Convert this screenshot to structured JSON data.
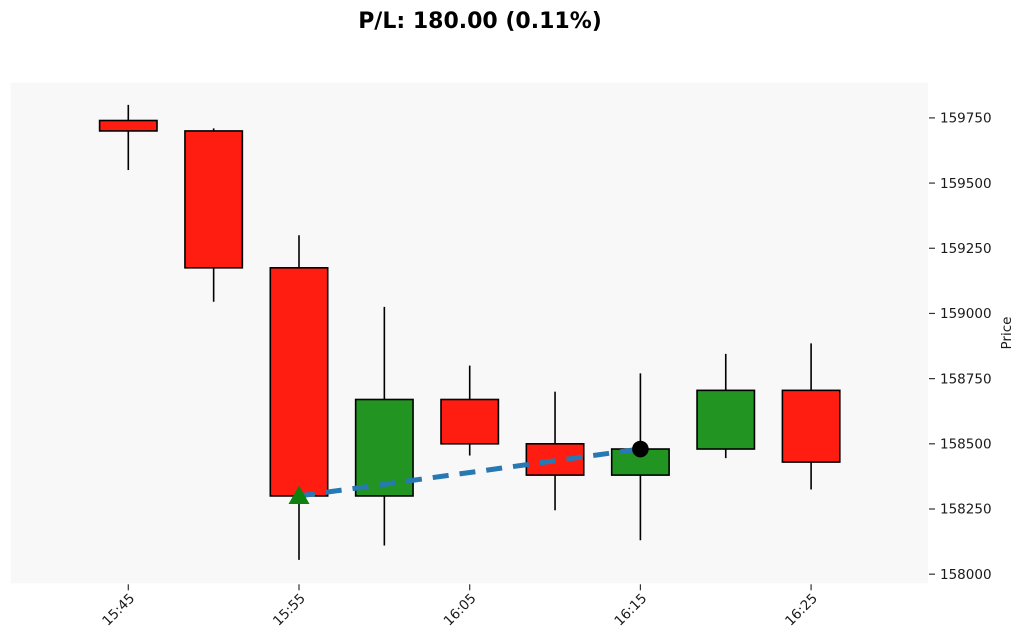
{
  "title": "P/L: 180.00 (0.11%)",
  "chart_data": {
    "type": "candlestick",
    "title": "P/L: 180.00 (0.11%)",
    "ylabel": "Price",
    "xlabel": "",
    "grid": false,
    "y_ticks": [
      158000,
      158250,
      158500,
      158750,
      159000,
      159250,
      159500,
      159750
    ],
    "ylim": [
      157965,
      159885
    ],
    "x_tick_labels": [
      "15:45",
      "15:55",
      "16:05",
      "16:15",
      "16:25"
    ],
    "x_tick_candle_indices": [
      0,
      2,
      4,
      6,
      8
    ],
    "categories": [
      "15:45",
      "15:50",
      "15:55",
      "16:00",
      "16:05",
      "16:10",
      "16:15",
      "16:20",
      "16:25"
    ],
    "candles": [
      {
        "time": "15:45",
        "open": 159740,
        "high": 159800,
        "low": 159550,
        "close": 159700
      },
      {
        "time": "15:50",
        "open": 159700,
        "high": 159710,
        "low": 159045,
        "close": 159175
      },
      {
        "time": "15:55",
        "open": 159175,
        "high": 159300,
        "low": 158055,
        "close": 158300
      },
      {
        "time": "16:00",
        "open": 158300,
        "high": 159025,
        "low": 158110,
        "close": 158670
      },
      {
        "time": "16:05",
        "open": 158670,
        "high": 158800,
        "low": 158455,
        "close": 158500
      },
      {
        "time": "16:10",
        "open": 158500,
        "high": 158700,
        "low": 158245,
        "close": 158380
      },
      {
        "time": "16:15",
        "open": 158380,
        "high": 158770,
        "low": 158130,
        "close": 158480
      },
      {
        "time": "16:20",
        "open": 158480,
        "high": 158845,
        "low": 158445,
        "close": 158705
      },
      {
        "time": "16:25",
        "open": 158705,
        "high": 158885,
        "low": 158325,
        "close": 158430
      }
    ],
    "trade": {
      "pl_points": "180.00",
      "pl_percent": "0.11%",
      "entry": {
        "time": "15:55",
        "index": 2,
        "price": 158300,
        "marker": "triangle-up",
        "color": "#0d800d"
      },
      "exit": {
        "time": "16:15",
        "index": 6,
        "price": 158480,
        "marker": "circle",
        "color": "#000000"
      },
      "line_color": "#2878b4",
      "line_style": "dashed"
    },
    "colors": {
      "up": "#229422",
      "down": "#ff1d12",
      "outline": "#000000",
      "plot_bg": "#f8f8f8",
      "fig_bg": "#ffffff",
      "tick": "#333333",
      "label": "#1a1a1a"
    },
    "legend": null
  }
}
